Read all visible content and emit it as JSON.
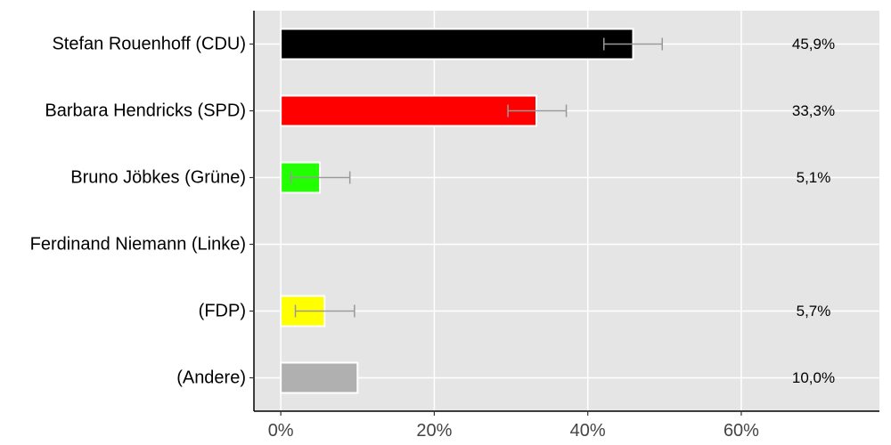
{
  "chart_data": {
    "type": "bar",
    "orientation": "horizontal",
    "title": "",
    "xlabel": "",
    "ylabel": "",
    "xlim": [
      -3.5,
      78
    ],
    "xticks": [
      0,
      20,
      40,
      60
    ],
    "xtick_labels": [
      "0%",
      "20%",
      "40%",
      "60%"
    ],
    "grid": true,
    "legend": "none",
    "categories": [
      "Stefan Rouenhoff (CDU)",
      "Barbara Hendricks (SPD)",
      "Bruno Jöbkes (Grüne)",
      "Ferdinand Niemann (Linke)",
      "(FDP)",
      "(Andere)"
    ],
    "values": [
      45.9,
      33.3,
      5.1,
      null,
      5.7,
      10.0
    ],
    "value_labels": [
      "45,9%",
      "33,3%",
      "5,1%",
      "",
      "5,7%",
      "10,0%"
    ],
    "error_low": [
      42.1,
      29.6,
      1.3,
      null,
      1.9,
      null
    ],
    "error_high": [
      49.7,
      37.2,
      9.0,
      null,
      9.6,
      null
    ],
    "colors": [
      "#000000",
      "#ff0000",
      "#22ff00",
      "#cc00cc",
      "#ffff00",
      "#b0b0b0"
    ],
    "panel_background": "#e5e5e5",
    "grid_color": "#ffffff",
    "error_bar_color": "#999999"
  }
}
